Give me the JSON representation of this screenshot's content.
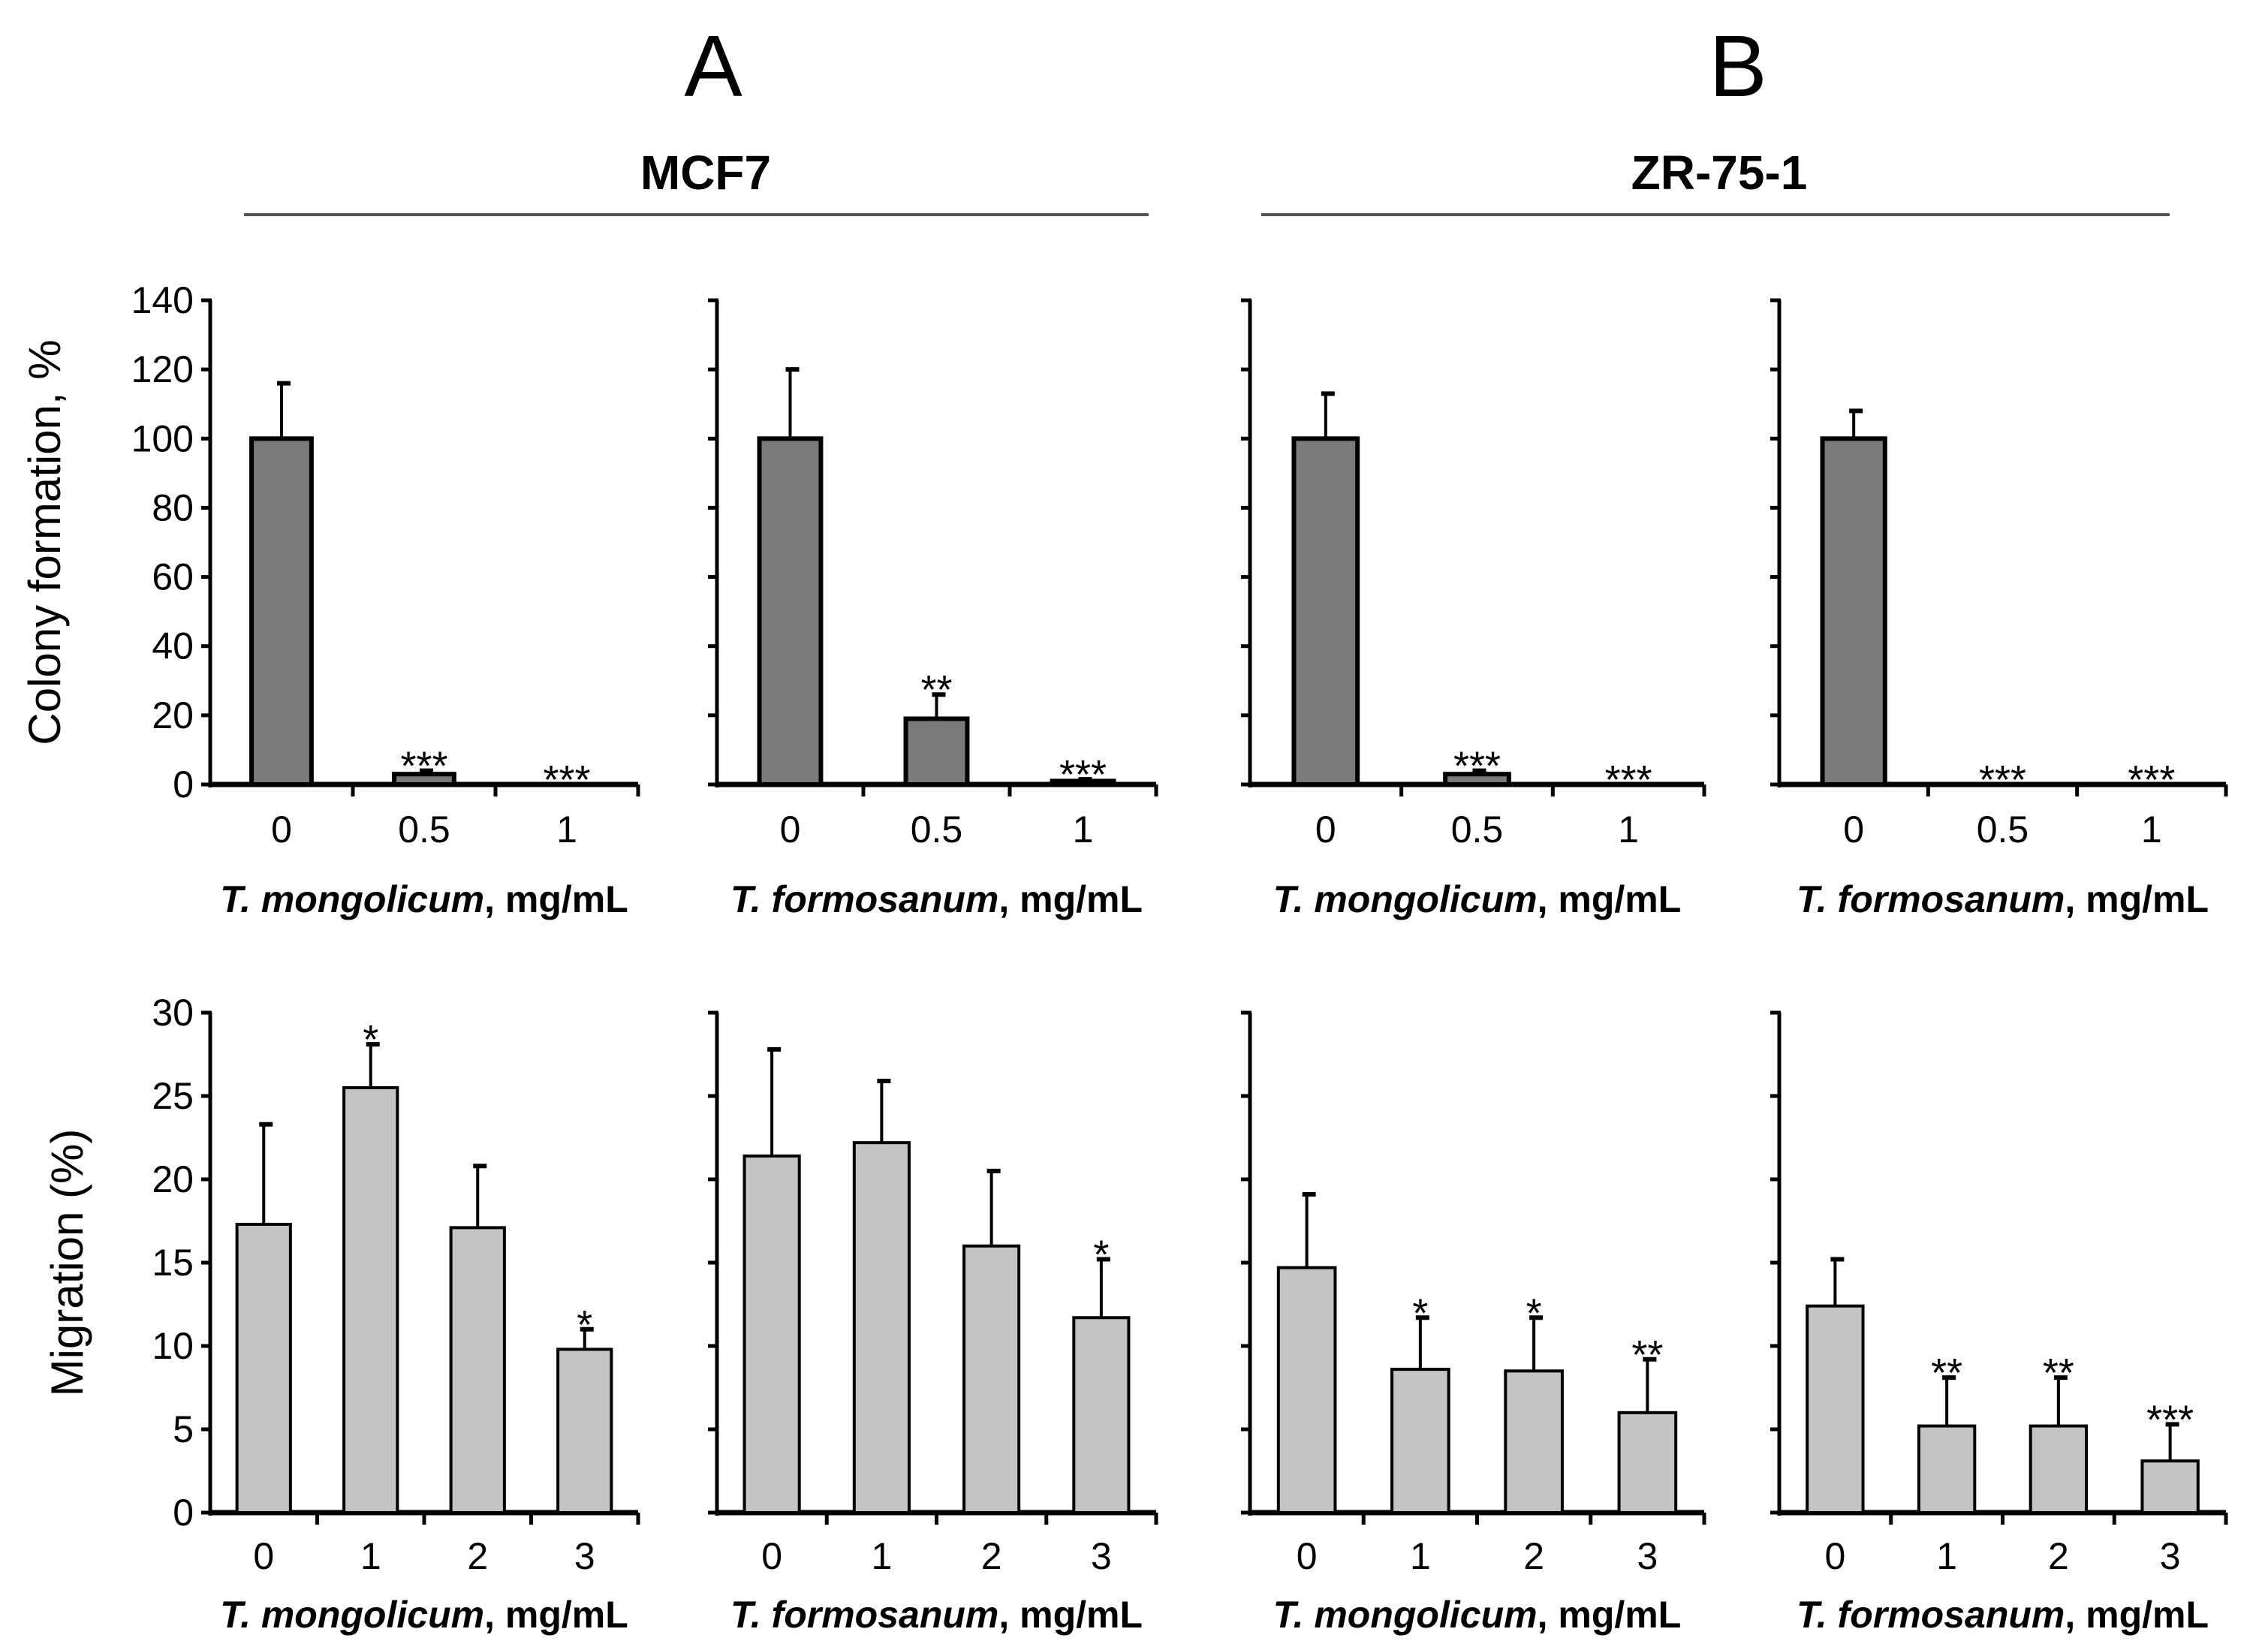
{
  "panel_letters": [
    "A",
    "B"
  ],
  "cell_lines": [
    "MCF7",
    "ZR-75-1"
  ],
  "colors": {
    "colony_bar": "#7a7a7a",
    "migration_bar": "#c4c4c4",
    "axis": "#000000",
    "group_line": "#555555"
  },
  "chart_data": [
    {
      "type": "bar",
      "row": "colony",
      "panel": "A",
      "cell_line": "MCF7",
      "categories": [
        "0",
        "0.5",
        "1"
      ],
      "values": [
        100,
        3,
        0
      ],
      "errors": [
        16,
        1,
        0
      ],
      "significance": [
        "",
        "***",
        "***"
      ],
      "xlabel_species": "T. mongolicum",
      "xlabel_unit": ", mg/mL",
      "ylabel": "Colony formation, %",
      "ylim": [
        0,
        140
      ],
      "yticks": [
        "0",
        "20",
        "40",
        "60",
        "80",
        "100",
        "120",
        "140"
      ]
    },
    {
      "type": "bar",
      "row": "colony",
      "panel": "A",
      "cell_line": "MCF7",
      "categories": [
        "0",
        "0.5",
        "1"
      ],
      "values": [
        100,
        19,
        1
      ],
      "errors": [
        20,
        7,
        0.5
      ],
      "significance": [
        "",
        "**",
        "***"
      ],
      "xlabel_species": "T. formosanum",
      "xlabel_unit": ", mg/mL",
      "ylabel": "",
      "ylim": [
        0,
        140
      ],
      "yticks": []
    },
    {
      "type": "bar",
      "row": "colony",
      "panel": "B",
      "cell_line": "ZR-75-1",
      "categories": [
        "0",
        "0.5",
        "1"
      ],
      "values": [
        100,
        3,
        0
      ],
      "errors": [
        13,
        1,
        0
      ],
      "significance": [
        "",
        "***",
        "***"
      ],
      "xlabel_species": "T. mongolicum",
      "xlabel_unit": ", mg/mL",
      "ylabel": "",
      "ylim": [
        0,
        140
      ],
      "yticks": []
    },
    {
      "type": "bar",
      "row": "colony",
      "panel": "B",
      "cell_line": "ZR-75-1",
      "categories": [
        "0",
        "0.5",
        "1"
      ],
      "values": [
        100,
        0,
        0
      ],
      "errors": [
        8,
        0,
        0
      ],
      "significance": [
        "",
        "***",
        "***"
      ],
      "xlabel_species": "T. formosanum",
      "xlabel_unit": ", mg/mL",
      "ylabel": "",
      "ylim": [
        0,
        140
      ],
      "yticks": []
    },
    {
      "type": "bar",
      "row": "migration",
      "panel": "A",
      "cell_line": "MCF7",
      "categories": [
        "0",
        "1",
        "2",
        "3"
      ],
      "values": [
        17.3,
        25.5,
        17.1,
        9.8
      ],
      "errors": [
        6.0,
        2.6,
        3.7,
        1.2
      ],
      "significance": [
        "",
        "*",
        "",
        "*"
      ],
      "xlabel_species": "T. mongolicum",
      "xlabel_unit": ", mg/mL",
      "ylabel": "Migration (%)",
      "ylim": [
        0,
        30
      ],
      "yticks": [
        "0",
        "5",
        "10",
        "15",
        "20",
        "25",
        "30"
      ]
    },
    {
      "type": "bar",
      "row": "migration",
      "panel": "A",
      "cell_line": "MCF7",
      "categories": [
        "0",
        "1",
        "2",
        "3"
      ],
      "values": [
        21.4,
        22.2,
        16.0,
        11.7
      ],
      "errors": [
        6.4,
        3.7,
        4.5,
        3.5
      ],
      "significance": [
        "",
        "",
        "",
        "*"
      ],
      "xlabel_species": "T. formosanum",
      "xlabel_unit": ", mg/mL",
      "ylabel": "",
      "ylim": [
        0,
        30
      ],
      "yticks": []
    },
    {
      "type": "bar",
      "row": "migration",
      "panel": "B",
      "cell_line": "ZR-75-1",
      "categories": [
        "0",
        "1",
        "2",
        "3"
      ],
      "values": [
        14.7,
        8.6,
        8.5,
        6.0
      ],
      "errors": [
        4.4,
        3.1,
        3.2,
        3.2
      ],
      "significance": [
        "",
        "*",
        "*",
        "**"
      ],
      "xlabel_species": "T. mongolicum",
      "xlabel_unit": ", mg/mL",
      "ylabel": "",
      "ylim": [
        0,
        30
      ],
      "yticks": []
    },
    {
      "type": "bar",
      "row": "migration",
      "panel": "B",
      "cell_line": "ZR-75-1",
      "categories": [
        "0",
        "1",
        "2",
        "3"
      ],
      "values": [
        12.4,
        5.2,
        5.2,
        3.1
      ],
      "errors": [
        2.8,
        2.9,
        2.9,
        2.2
      ],
      "significance": [
        "",
        "**",
        "**",
        "***"
      ],
      "xlabel_species": "T. formosanum",
      "xlabel_unit": ", mg/mL",
      "ylabel": "",
      "ylim": [
        0,
        30
      ],
      "yticks": []
    }
  ]
}
